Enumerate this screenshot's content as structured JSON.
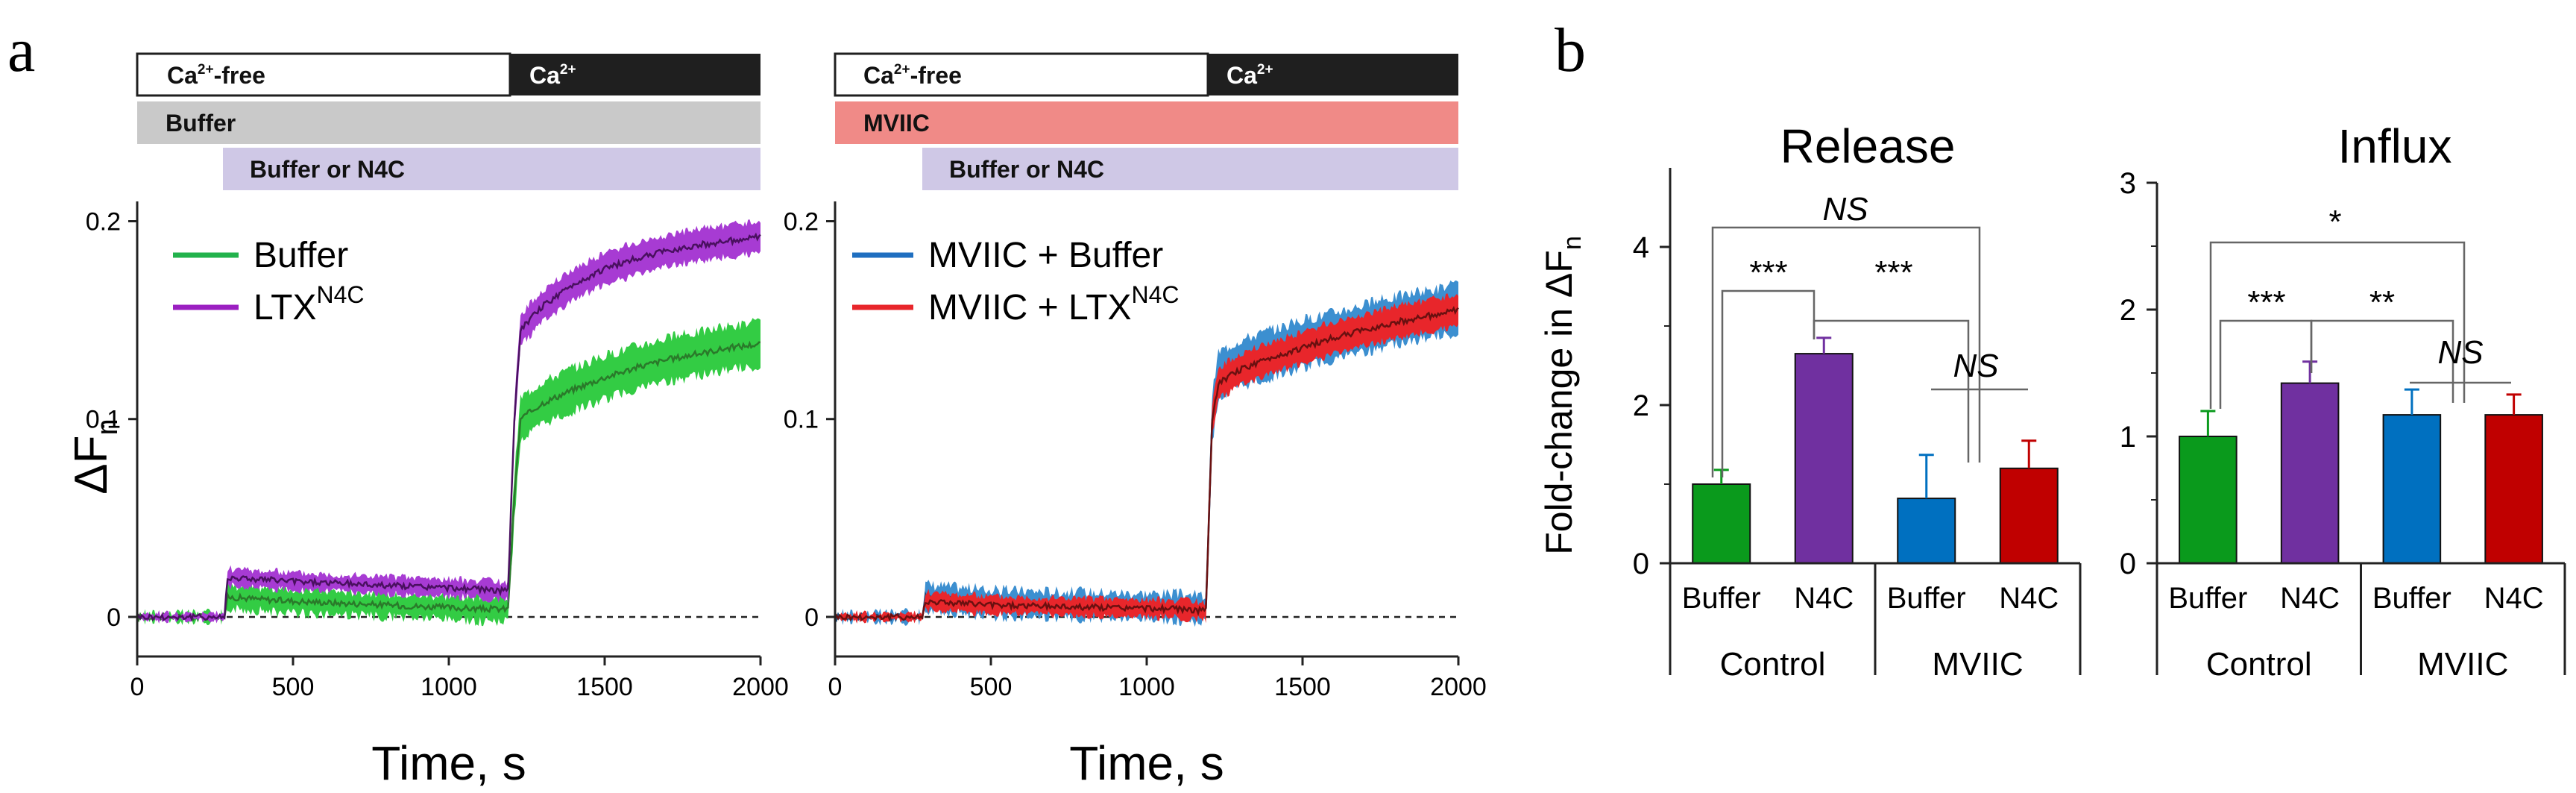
{
  "panel_labels": {
    "a": "a",
    "b": "b"
  },
  "colors": {
    "green": "#22b24c",
    "green_light": "#33cc44",
    "purple": "#9b1fc1",
    "purple_light": "#a73bd3",
    "blue": "#3c8fd0",
    "red": "#e8262b",
    "bar_green": "#0a9a1c",
    "bar_purple": "#7030a0",
    "bar_blue": "#0070c0",
    "bar_red": "#c00000",
    "buffer_bar": "#c9c9c9",
    "n4c_bar": "#cfc8e6",
    "mviic_bar": "#f08a87",
    "black_bar": "#1f1f1f"
  },
  "protocol": {
    "ca_free": "Ca2+-free",
    "ca": "Ca2+",
    "ca_free_pre": "Ca",
    "ca_free_sup": "2+",
    "ca_free_post": "-free",
    "ca_pre": "Ca",
    "ca_sup": "2+",
    "left_bar2": "Buffer",
    "right_bar2": "MVIIC",
    "bar3": "Buffer or N4C"
  },
  "chart_data": [
    {
      "type": "line",
      "panel": "a-left",
      "xlabel": "Time, s",
      "ylabel": "ΔFn",
      "ylabel_main": "ΔF",
      "ylabel_sub": "n",
      "xlim": [
        0,
        2000
      ],
      "ylim": [
        -0.02,
        0.21
      ],
      "xticks": [
        0,
        500,
        1000,
        1500,
        2000
      ],
      "yticks": [
        0,
        0.1,
        0.2
      ],
      "ytick_labels": [
        "0",
        "0.1",
        "0.2"
      ],
      "baseline_dashed_y": 0,
      "legend": [
        {
          "name": "Buffer",
          "label": "Buffer",
          "sup": ""
        },
        {
          "name": "LTX N4C",
          "label": "LTX",
          "sup": "N4C"
        }
      ],
      "series": [
        {
          "name": "Buffer",
          "x": [
            0,
            280,
            290,
            500,
            800,
            1100,
            1190,
            1210,
            1230,
            1300,
            1400,
            1500,
            1600,
            1700,
            1800,
            1900,
            2000
          ],
          "y": [
            0,
            0,
            0.01,
            0.008,
            0.006,
            0.004,
            0.004,
            0.06,
            0.1,
            0.108,
            0.115,
            0.121,
            0.126,
            0.13,
            0.133,
            0.136,
            0.138
          ],
          "band": 0.011
        },
        {
          "name": "LTX N4C",
          "x": [
            0,
            280,
            290,
            500,
            800,
            1100,
            1190,
            1210,
            1230,
            1300,
            1400,
            1500,
            1600,
            1700,
            1800,
            1900,
            2000
          ],
          "y": [
            0,
            0,
            0.02,
            0.018,
            0.016,
            0.014,
            0.013,
            0.1,
            0.145,
            0.157,
            0.168,
            0.176,
            0.181,
            0.185,
            0.188,
            0.19,
            0.192
          ],
          "band": 0.008
        }
      ]
    },
    {
      "type": "line",
      "panel": "a-right",
      "xlabel": "Time, s",
      "xlim": [
        0,
        2000
      ],
      "ylim": [
        -0.02,
        0.21
      ],
      "xticks": [
        0,
        500,
        1000,
        1500,
        2000
      ],
      "yticks": [
        0,
        0.1,
        0.2
      ],
      "ytick_labels": [
        "0",
        "0.1",
        "0.2"
      ],
      "baseline_dashed_y": 0,
      "legend": [
        {
          "name": "MVIIC + Buffer",
          "label": "MVIIC + Buffer",
          "sup": ""
        },
        {
          "name": "MVIIC + LTX N4C",
          "label": "MVIIC + LTX",
          "sup": "N4C"
        }
      ],
      "series": [
        {
          "name": "MVIIC + Buffer",
          "x": [
            0,
            280,
            290,
            500,
            800,
            1100,
            1190,
            1210,
            1230,
            1300,
            1400,
            1500,
            1600,
            1700,
            1800,
            1900,
            2000
          ],
          "y": [
            0,
            0,
            0.01,
            0.007,
            0.006,
            0.005,
            0.004,
            0.1,
            0.122,
            0.128,
            0.133,
            0.138,
            0.142,
            0.146,
            0.15,
            0.153,
            0.156
          ],
          "band": 0.012
        },
        {
          "name": "MVIIC + LTX N4C",
          "x": [
            0,
            280,
            290,
            500,
            800,
            1100,
            1190,
            1210,
            1230,
            1300,
            1400,
            1500,
            1600,
            1700,
            1800,
            1900,
            2000
          ],
          "y": [
            0,
            0,
            0.008,
            0.006,
            0.005,
            0.004,
            0.003,
            0.1,
            0.118,
            0.125,
            0.131,
            0.136,
            0.141,
            0.145,
            0.149,
            0.152,
            0.155
          ],
          "band": 0.008
        }
      ]
    },
    {
      "type": "bar",
      "panel": "b-release",
      "title": "Release",
      "ylabel": "Fold-change in ΔFn",
      "ylabel_main": "Fold-change in ΔF",
      "ylabel_sub": "n",
      "ylim": [
        0,
        5
      ],
      "yticks": [
        0,
        2,
        4
      ],
      "categories": [
        "Buffer",
        "N4C",
        "Buffer",
        "N4C"
      ],
      "groups": [
        "Control",
        "MVIIC"
      ],
      "values": [
        1.0,
        2.65,
        0.82,
        1.2
      ],
      "errors": [
        0.18,
        0.2,
        0.55,
        0.35
      ],
      "significance": [
        {
          "label": "NS",
          "italic": true
        },
        {
          "label": "***",
          "italic": false
        },
        {
          "label": "***",
          "italic": false
        },
        {
          "label": "NS",
          "italic": true
        }
      ]
    },
    {
      "type": "bar",
      "panel": "b-influx",
      "title": "Influx",
      "ylim": [
        0,
        3
      ],
      "yticks": [
        0,
        1,
        2,
        3
      ],
      "categories": [
        "Buffer",
        "N4C",
        "Buffer",
        "N4C"
      ],
      "groups": [
        "Control",
        "MVIIC"
      ],
      "values": [
        1.0,
        1.42,
        1.17,
        1.17
      ],
      "errors": [
        0.2,
        0.17,
        0.2,
        0.16
      ],
      "significance": [
        {
          "label": "*",
          "italic": false
        },
        {
          "label": "***",
          "italic": false
        },
        {
          "label": "**",
          "italic": false
        },
        {
          "label": "NS",
          "italic": true
        }
      ]
    }
  ]
}
